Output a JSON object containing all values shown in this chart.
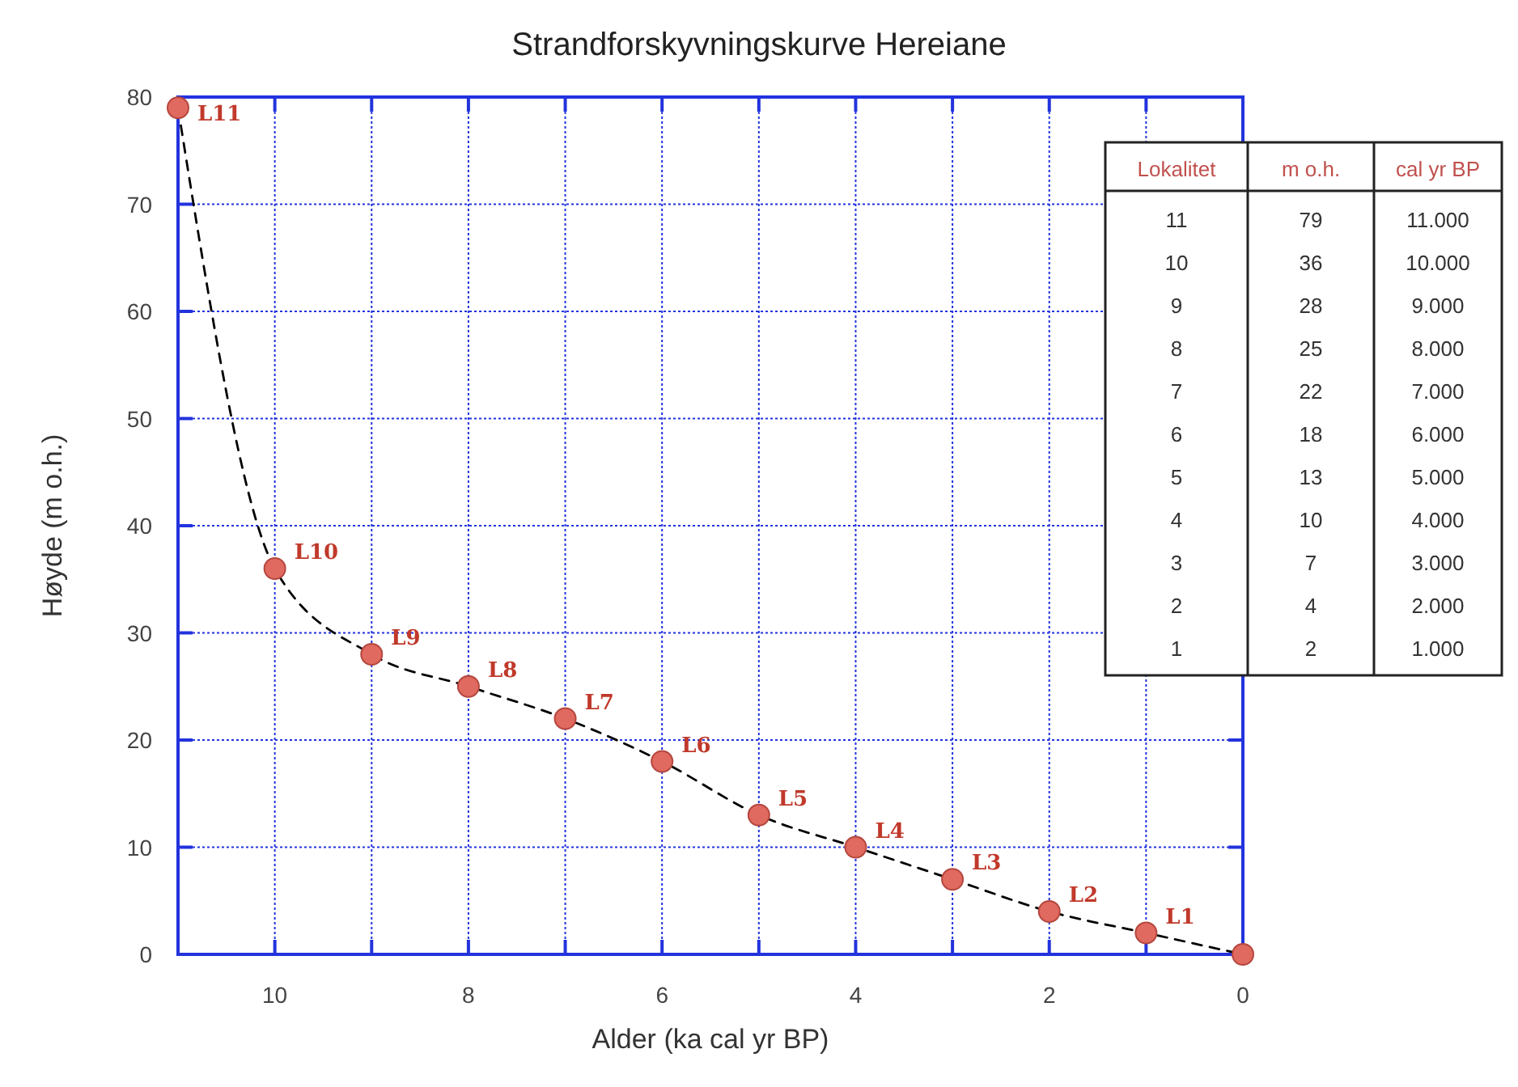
{
  "chart_data": {
    "type": "scatter",
    "title": "Strandforskyvningskurve Hereiane",
    "xlabel": "Alder (ka cal yr BP)",
    "ylabel": "Høyde (m o.h.)",
    "x": [
      11,
      10,
      9,
      8,
      7,
      6,
      5,
      4,
      3,
      2,
      1,
      0
    ],
    "series": [
      {
        "type": "line",
        "color": "#000000",
        "line_style": "dashed",
        "marker": "none",
        "values": [
          79,
          36,
          28,
          25,
          22,
          18,
          13,
          10,
          7,
          4,
          2,
          0
        ]
      },
      {
        "color": "#e06a5f",
        "marker": "circle",
        "values": [
          79,
          36,
          28,
          25,
          22,
          18,
          13,
          10,
          7,
          4,
          2,
          0
        ],
        "value_labels": [
          "L11",
          "L10",
          "L9",
          "L8",
          "L7",
          "L6",
          "L5",
          "L4",
          "L3",
          "L2",
          "L1",
          null
        ]
      }
    ],
    "xlim": [
      11,
      0
    ],
    "xticks": [
      {
        "value": 11,
        "label": null
      },
      10,
      {
        "value": 9,
        "label": null
      },
      8,
      {
        "value": 7,
        "label": null
      },
      6,
      {
        "value": 5,
        "label": null
      },
      4,
      {
        "value": 3,
        "label": null
      },
      2,
      {
        "value": 1,
        "label": null
      },
      0
    ],
    "ylim": [
      0,
      80
    ],
    "yticks": [
      0,
      10,
      20,
      30,
      40,
      50,
      60,
      70,
      80
    ],
    "grid": true,
    "annotations": [
      "Lokalitet",
      "m o.h.",
      "cal yr BP",
      "11",
      "79",
      "11.000",
      "10",
      "36",
      "10.000",
      "9",
      "28",
      "9.000",
      "8",
      "25",
      "8.000",
      "7",
      "22",
      "7.000",
      "6",
      "18",
      "6.000",
      "5",
      "13",
      "5.000",
      "4",
      "10",
      "4.000",
      "3",
      "7",
      "3.000",
      "2",
      "4",
      "2.000",
      "1",
      "2",
      "1.000"
    ]
  }
}
